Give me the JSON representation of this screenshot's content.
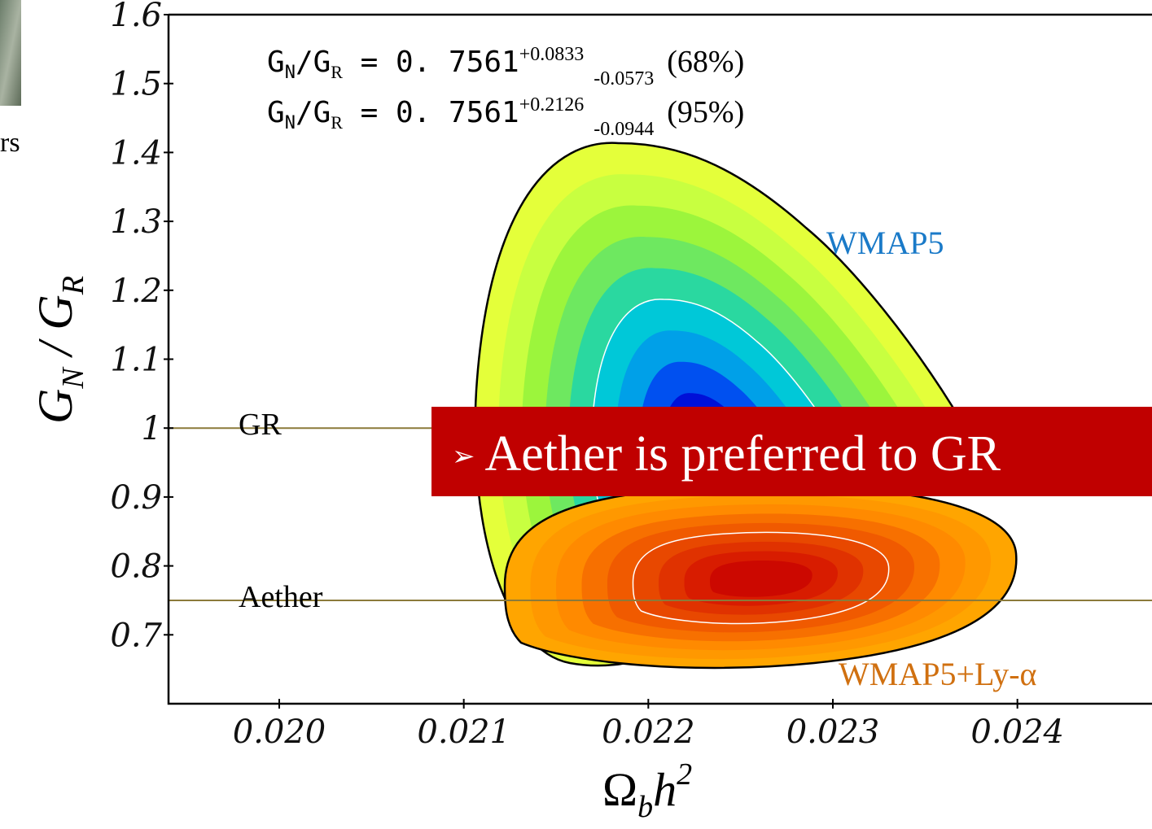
{
  "chart_data": {
    "type": "contour",
    "xlabel": {
      "text": "Ω",
      "sub": "b",
      "text2": "h",
      "sup": "2"
    },
    "ylabel": {
      "text": "G",
      "sub": "N",
      "text2": " / G",
      "sub2": "R"
    },
    "xlim": [
      0.0194,
      0.0248
    ],
    "ylim": [
      0.6,
      1.6
    ],
    "xticks": [
      {
        "value": 0.02,
        "label": "0.020"
      },
      {
        "value": 0.021,
        "label": "0.021"
      },
      {
        "value": 0.022,
        "label": "0.022"
      },
      {
        "value": 0.023,
        "label": "0.023"
      },
      {
        "value": 0.024,
        "label": "0.024"
      }
    ],
    "yticks": [
      0.7,
      0.8,
      0.9,
      1,
      1.1,
      1.2,
      1.3,
      1.4,
      1.5,
      1.6
    ],
    "reference_lines": [
      {
        "label": "GR",
        "value": 1,
        "color": "#8b7a3a"
      },
      {
        "label": "Aether",
        "value": 0.75,
        "color": "#8b7a3a"
      }
    ],
    "series": [
      {
        "name": "WMAP5",
        "color": "#1a7ac8"
      },
      {
        "name": "WMAP5+Ly-α",
        "color": "#d07010"
      }
    ],
    "annotations": [
      {
        "lhs": "G",
        "lhs_sub": "N",
        "mid": "/G",
        "mid_sub": "R",
        "eq": " = 0. 7561",
        "plus": "+0.0833",
        "minus": "-0.0573",
        "level": "(68%)"
      },
      {
        "lhs": "G",
        "lhs_sub": "N",
        "mid": "/G",
        "mid_sub": "R",
        "eq": " = 0. 7561",
        "plus": "+0.2126",
        "minus": "-0.0944",
        "level": "(95%)"
      }
    ]
  },
  "banner": {
    "bullet": "➢",
    "text": "Aether is preferred to GR"
  },
  "sidebar": {
    "fragment": "rs"
  }
}
